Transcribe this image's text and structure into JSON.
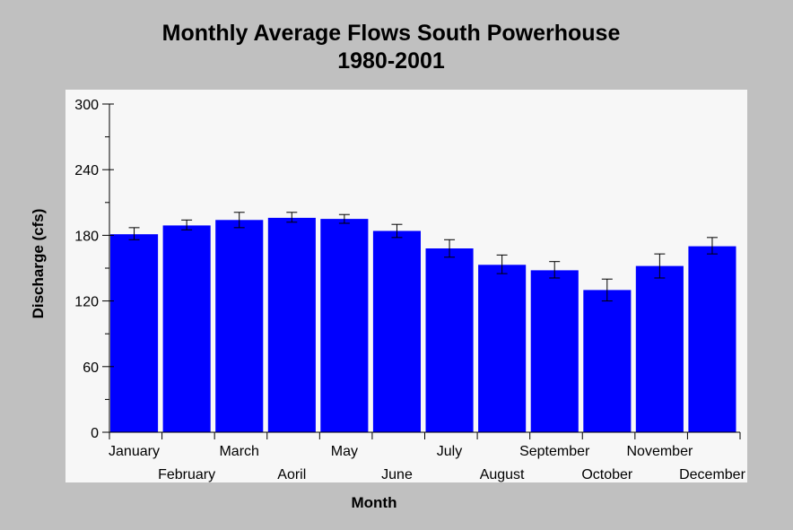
{
  "chart_data": {
    "type": "bar",
    "title": "Monthly Average Flows South Powerhouse",
    "subtitle": "1980-2001",
    "xlabel": "Month",
    "ylabel": "Discharge (cfs)",
    "ylim": [
      0,
      300
    ],
    "yticks": [
      0,
      60,
      120,
      180,
      240,
      300
    ],
    "grid": false,
    "legend": "none",
    "bar_color": "#0000ff",
    "categories": [
      "January",
      "February",
      "March",
      "Aoril",
      "May",
      "June",
      "July",
      "August",
      "September",
      "October",
      "November",
      "December"
    ],
    "values": [
      181,
      189,
      194,
      196,
      195,
      184,
      168,
      153,
      148,
      130,
      152,
      170
    ],
    "error_low": [
      176,
      185,
      187,
      192,
      191,
      178,
      160,
      145,
      141,
      120,
      141,
      163
    ],
    "error_high": [
      187,
      194,
      201,
      201,
      199,
      190,
      176,
      162,
      156,
      140,
      163,
      178
    ]
  }
}
